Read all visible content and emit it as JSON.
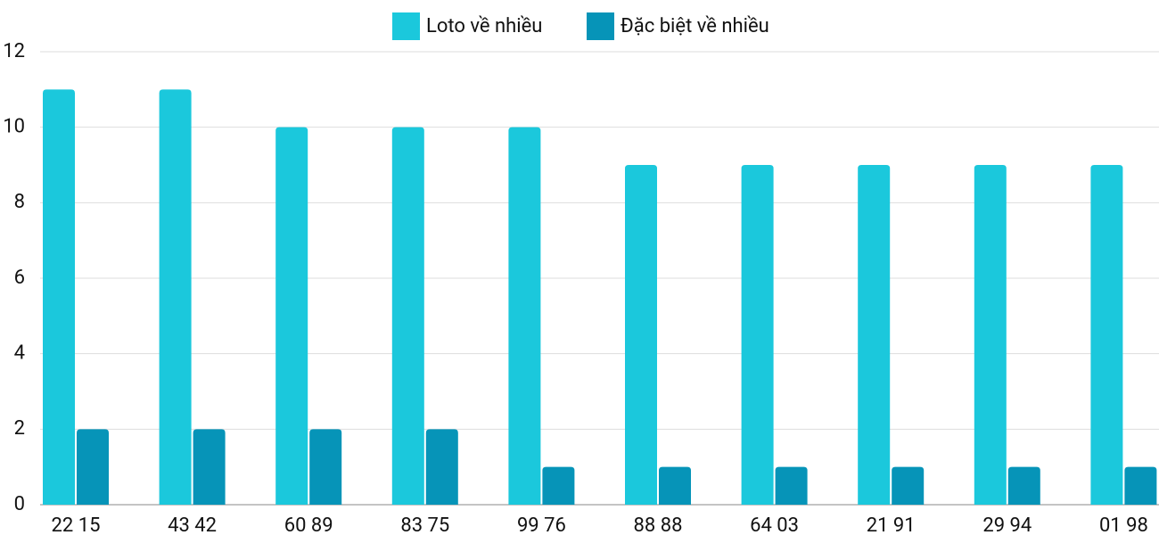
{
  "chart_data": {
    "type": "bar",
    "categories": [
      "22 15",
      "43 42",
      "60 89",
      "83 75",
      "99 76",
      "88 88",
      "64 03",
      "21 91",
      "29 94",
      "01 98"
    ],
    "series": [
      {
        "name": "Loto về nhiều",
        "color": "#1bc8dc",
        "values": [
          11,
          11,
          10,
          10,
          10,
          9,
          9,
          9,
          9,
          9
        ]
      },
      {
        "name": "Đặc biệt về nhiều",
        "color": "#0694b8",
        "values": [
          2,
          2,
          2,
          2,
          1,
          1,
          1,
          1,
          1,
          1
        ]
      }
    ],
    "ylim": [
      0,
      12
    ],
    "yticks": [
      0,
      2,
      4,
      6,
      8,
      10,
      12
    ],
    "grid": true,
    "legend": "top"
  }
}
